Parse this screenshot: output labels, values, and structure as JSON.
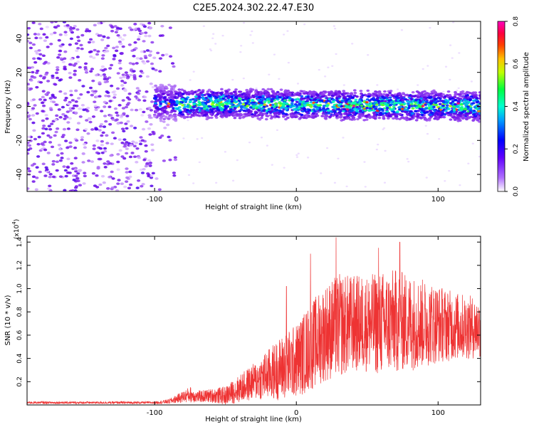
{
  "chart_data": [
    {
      "type": "heatmap",
      "title": "C2E5.2024.302.22.47.E30",
      "xlabel": "Height of straight line (km)",
      "ylabel": "Frequency (Hz)",
      "xlim": [
        -190,
        130
      ],
      "ylim": [
        -50,
        50
      ],
      "x_ticks": [
        -100,
        0,
        100
      ],
      "y_ticks": [
        -40,
        -20,
        0,
        20,
        40
      ],
      "colorbar": {
        "label": "Normalized spectral amplitude",
        "range": [
          0.0,
          0.8
        ],
        "ticks": [
          "0.0",
          "0.2",
          "0.4",
          "0.6",
          "0.8"
        ],
        "colormap": [
          "#ffffff",
          "#8000ff",
          "#0000ff",
          "#00ffff",
          "#00ff00",
          "#ffff00",
          "#ff8000",
          "#ff0000",
          "#ff00c0"
        ]
      },
      "description_values": {
        "noise_region_x": [
          -190,
          -85
        ],
        "signal_band_center_hz": [
          2,
          0
        ],
        "signal_band_halfwidth_hz": 6,
        "signal_x_range": [
          -100,
          130
        ],
        "peak_amplitude": 0.75
      }
    },
    {
      "type": "line",
      "xlabel": "Height of straight line (km)",
      "ylabel": "SNR (10 * v/v)",
      "y_multiplier_label": "(x10",
      "y_multiplier_exp": "4",
      "xlim": [
        -190,
        130
      ],
      "ylim": [
        0,
        1.45
      ],
      "x_ticks": [
        -100,
        0,
        100
      ],
      "y_ticks": [
        "0.2",
        "0.4",
        "0.6",
        "0.8",
        "1.0",
        "1.2",
        "1.4"
      ],
      "line_color": "#ee3333",
      "envelope": {
        "x": [
          -190,
          -100,
          -90,
          -80,
          -75,
          -70,
          -60,
          -50,
          -40,
          -30,
          -20,
          -10,
          0,
          10,
          20,
          30,
          40,
          50,
          60,
          70,
          80,
          90,
          100,
          110,
          120,
          130
        ],
        "mean": [
          0.02,
          0.02,
          0.03,
          0.07,
          0.09,
          0.07,
          0.08,
          0.08,
          0.14,
          0.2,
          0.26,
          0.32,
          0.38,
          0.5,
          0.62,
          0.68,
          0.7,
          0.7,
          0.7,
          0.72,
          0.71,
          0.7,
          0.7,
          0.68,
          0.67,
          0.66
        ],
        "amp": [
          0.01,
          0.01,
          0.02,
          0.05,
          0.07,
          0.05,
          0.06,
          0.08,
          0.12,
          0.16,
          0.22,
          0.28,
          0.32,
          0.38,
          0.42,
          0.45,
          0.42,
          0.42,
          0.45,
          0.45,
          0.42,
          0.38,
          0.34,
          0.3,
          0.28,
          0.26
        ]
      },
      "peaks": [
        {
          "x": 28,
          "y": 1.44
        },
        {
          "x": 73,
          "y": 1.4
        },
        {
          "x": 10,
          "y": 1.3
        },
        {
          "x": 58,
          "y": 1.35
        },
        {
          "x": -7,
          "y": 1.02
        }
      ]
    }
  ],
  "texts": {
    "title": "C2E5.2024.302.22.47.E30",
    "top_xlabel": "Height of straight line (km)",
    "top_ylabel": "Frequency (Hz)",
    "colorbar_label": "Normalized spectral amplitude",
    "bottom_xlabel": "Height of straight line (km)",
    "bottom_ylabel": "SNR (10 * v/v)"
  }
}
